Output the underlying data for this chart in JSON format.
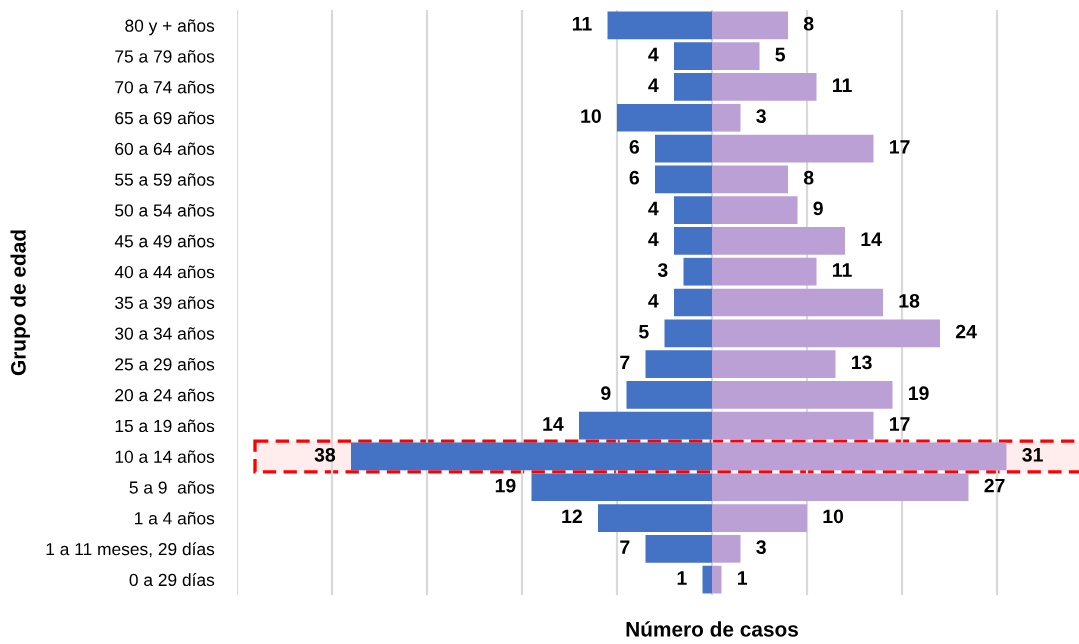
{
  "chart_data": [
    {
      "type": "bar",
      "orientation": "horizontal",
      "categories": [
        "80 y + años",
        "75 a 79 años",
        "70 a 74 años",
        "65 a 69 años",
        "60 a 64 años",
        "55 a 59 años",
        "50 a 54 años",
        "45 a 49 años",
        "40 a 44 años",
        "35 a 39 años",
        "30 a 34 años",
        "25 a 29 años",
        "20 a 24 años",
        "15 a 19 años",
        "10 a 14 años",
        "5 a 9  años",
        "1 a 4 años",
        "1 a 11 meses, 29 días",
        "0 a 29 días"
      ],
      "series": [
        {
          "color": "#4472c4",
          "values": [
            11,
            4,
            4,
            10,
            6,
            6,
            4,
            4,
            3,
            4,
            5,
            7,
            9,
            14,
            38,
            19,
            12,
            7,
            1
          ]
        }
      ],
      "data_labels": true,
      "xlabel": "Número de casos",
      "ylabel": "Grupo de edad",
      "xlim": [
        50,
        0
      ],
      "xticks": [
        {
          "value": 50,
          "label": null
        },
        {
          "value": 40,
          "label": null
        },
        {
          "value": 30,
          "label": null
        },
        {
          "value": 20,
          "label": null
        },
        {
          "value": 10,
          "label": null
        },
        {
          "value": 0,
          "label": null
        }
      ],
      "grid": "x",
      "tick_labels": "y",
      "bands": [
        {
          "axis": "y",
          "from": "10 a 14 años",
          "to": "10 a 14 años",
          "color": "#ff0000"
        }
      ]
    },
    {
      "type": "bar",
      "orientation": "horizontal",
      "categories": [
        null,
        null,
        null,
        null,
        null,
        null,
        null,
        null,
        null,
        null,
        null,
        null,
        null,
        null,
        null,
        null,
        null,
        null,
        null
      ],
      "series": [
        {
          "color": "#bba0d6",
          "values": [
            8,
            5,
            11,
            3,
            17,
            8,
            9,
            14,
            11,
            18,
            24,
            13,
            19,
            17,
            31,
            27,
            10,
            3,
            1
          ]
        }
      ],
      "data_labels": true,
      "xticks": [
        {
          "value": 0,
          "label": null
        },
        {
          "value": 10,
          "label": null
        },
        {
          "value": 20,
          "label": null
        },
        {
          "value": 30,
          "label": null
        }
      ],
      "grid": "x",
      "tick_labels": false
    }
  ]
}
